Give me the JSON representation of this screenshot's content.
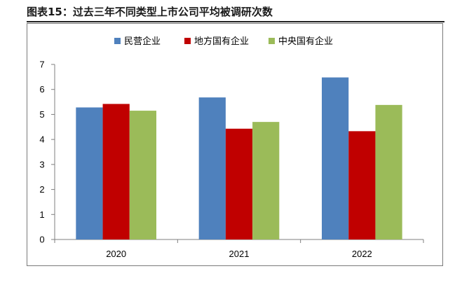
{
  "figure": {
    "title": "图表15：过去三年不同类型上市公司平均被调研次数"
  },
  "chart_data": {
    "type": "bar",
    "title": "",
    "xlabel": "",
    "ylabel": "",
    "categories": [
      "2020",
      "2021",
      "2022"
    ],
    "ylim": [
      0,
      7
    ],
    "yticks": [
      0,
      1,
      2,
      3,
      4,
      5,
      6,
      7
    ],
    "grid": false,
    "legend_position": "top",
    "series": [
      {
        "name": "民营企业",
        "color": "#4f81bd",
        "values": [
          5.28,
          5.68,
          6.48
        ]
      },
      {
        "name": "地方国有企业",
        "color": "#c00000",
        "values": [
          5.42,
          4.43,
          4.33
        ]
      },
      {
        "name": "中央国有企业",
        "color": "#9bbb59",
        "values": [
          5.15,
          4.7,
          5.38
        ]
      }
    ]
  }
}
